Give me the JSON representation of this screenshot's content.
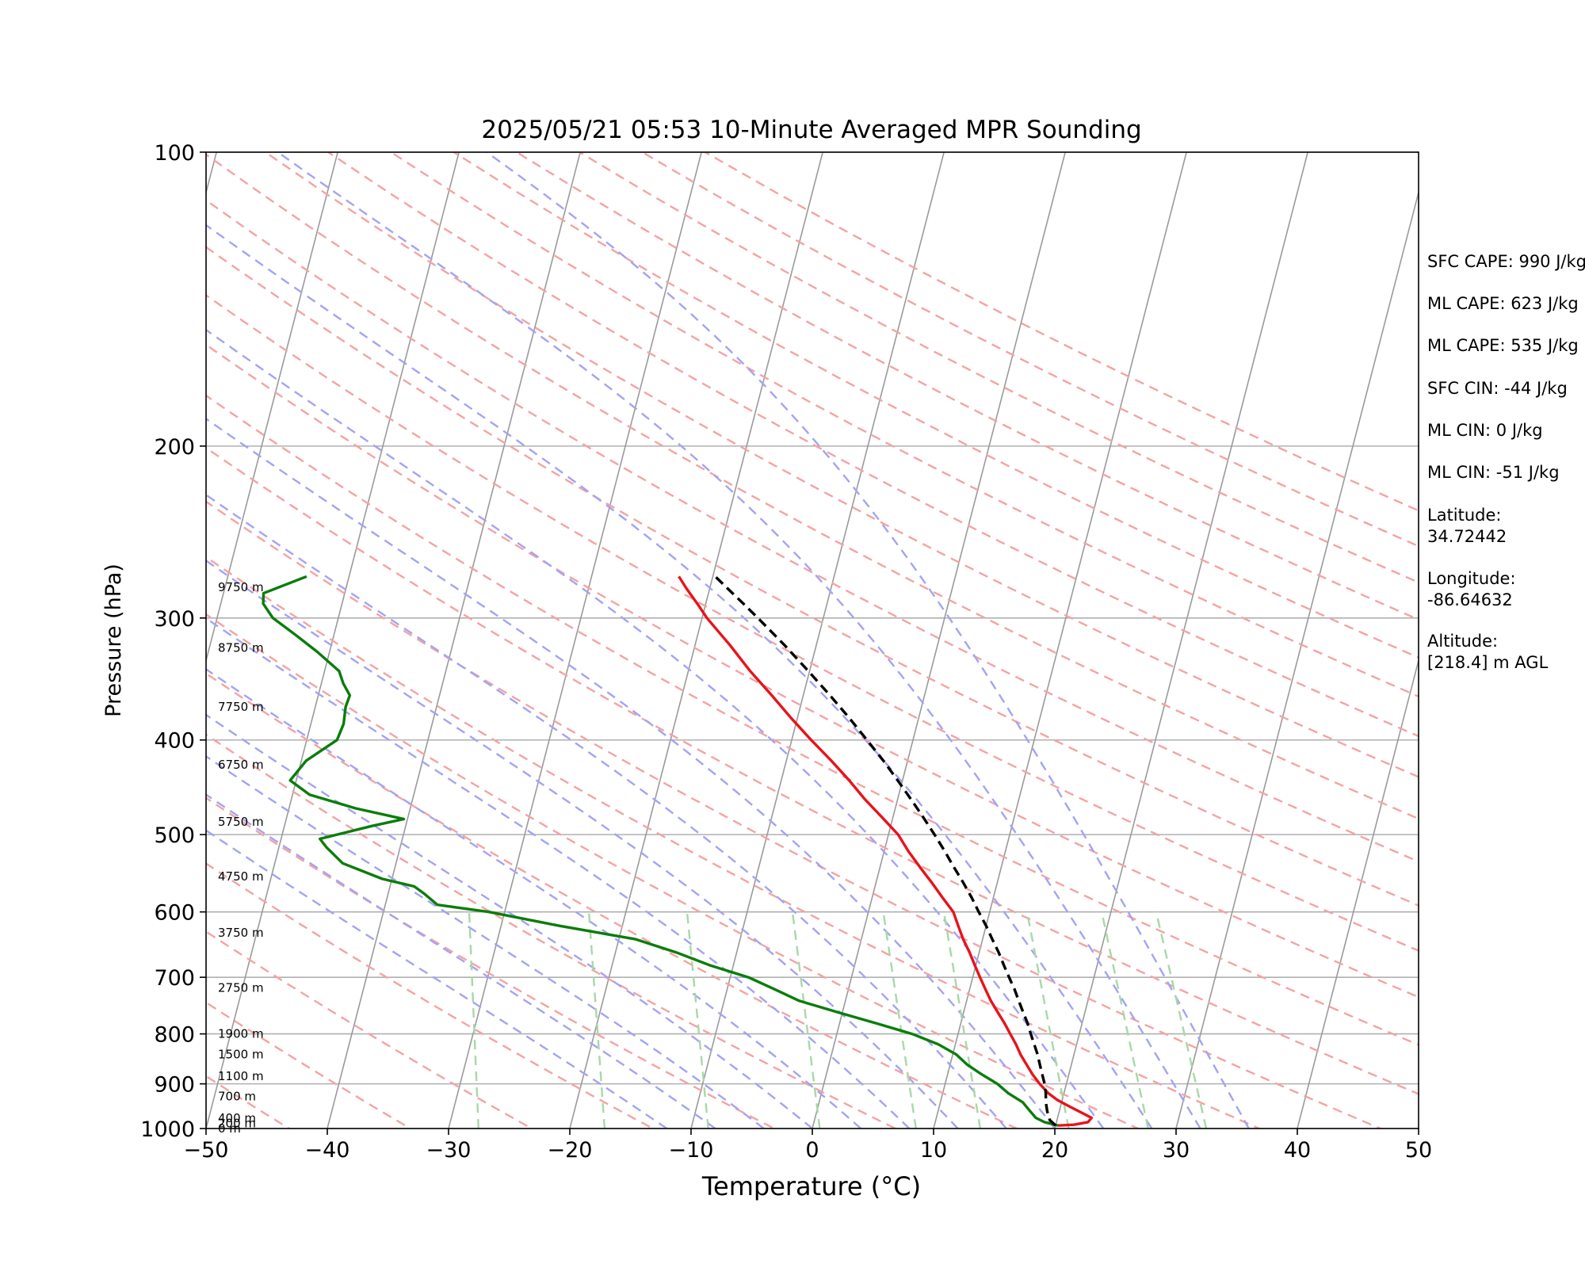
{
  "chart_data": {
    "type": "line",
    "title": "2025/05/21 05:53 10-Minute Averaged MPR Sounding",
    "xlabel": "Temperature (°C)",
    "ylabel": "Pressure (hPa)",
    "xlim": [
      -50,
      50
    ],
    "ylim": [
      1000,
      100
    ],
    "y_scale": "log",
    "x_ticks": [
      -50,
      -40,
      -30,
      -20,
      -10,
      0,
      10,
      20,
      30,
      40,
      50
    ],
    "x_tick_labels": [
      "−50",
      "−40",
      "−30",
      "−20",
      "−10",
      "0",
      "10",
      "20",
      "30",
      "40",
      "50"
    ],
    "y_ticks": [
      1000,
      900,
      800,
      700,
      600,
      500,
      400,
      300,
      200,
      100
    ],
    "y_tick_labels": [
      "1000",
      "900",
      "800",
      "700",
      "600",
      "500",
      "400",
      "300",
      "200",
      "100"
    ],
    "grid": true,
    "skew_t": true,
    "colors": {
      "temperature": "#e8131b",
      "dewpoint": "#0a7d0a",
      "parcel": "#000000",
      "dry_adiabats": "#f4a3a3",
      "moist_adiabats": "#a3a3f4",
      "mixing_ratio": "#a8d8a8",
      "isotherms": "#9a9a9a"
    },
    "series": [
      {
        "key": "temperature",
        "p": [
          993,
          991,
          985,
          975,
          965,
          950,
          935,
          920,
          900,
          880,
          860,
          840,
          820,
          800,
          780,
          760,
          740,
          720,
          700,
          680,
          660,
          640,
          620,
          600,
          580,
          560,
          540,
          520,
          500,
          480,
          460,
          440,
          420,
          400,
          380,
          360,
          340,
          320,
          300,
          290,
          280,
          272
        ],
        "t": [
          20.2,
          21.5,
          22.6,
          22.8,
          22.0,
          20.8,
          19.6,
          18.7,
          17.8,
          17.0,
          16.3,
          15.6,
          15.0,
          14.3,
          13.6,
          12.8,
          12.0,
          11.3,
          10.6,
          9.9,
          9.2,
          8.4,
          7.7,
          7.0,
          5.8,
          4.6,
          3.3,
          2.0,
          0.8,
          -0.9,
          -2.7,
          -4.4,
          -6.3,
          -8.4,
          -10.5,
          -12.6,
          -14.9,
          -17.1,
          -19.6,
          -20.7,
          -21.9,
          -22.8
        ]
      },
      {
        "key": "dewpoint",
        "p": [
          993,
          985,
          975,
          960,
          940,
          920,
          900,
          880,
          860,
          840,
          820,
          800,
          780,
          760,
          740,
          720,
          700,
          680,
          660,
          640,
          620,
          600,
          590,
          575,
          565,
          555,
          535,
          515,
          505,
          490,
          482,
          470,
          455,
          440,
          420,
          400,
          385,
          370,
          360,
          350,
          340,
          325,
          312,
          300,
          290,
          283,
          272
        ],
        "t": [
          20.2,
          19.0,
          18.2,
          17.6,
          16.8,
          15.4,
          14.3,
          12.8,
          11.4,
          10.3,
          8.6,
          6.2,
          3.0,
          -0.4,
          -3.8,
          -6.1,
          -8.5,
          -12.0,
          -15.0,
          -18.6,
          -25.2,
          -31.3,
          -35.7,
          -37.0,
          -38.0,
          -40.8,
          -44.4,
          -46.1,
          -46.8,
          -42.8,
          -40.3,
          -44.5,
          -48.6,
          -50.5,
          -49.6,
          -47.5,
          -47.3,
          -47.5,
          -47.4,
          -48.2,
          -48.8,
          -51.0,
          -53.2,
          -55.4,
          -56.5,
          -56.7,
          -53.5
        ]
      },
      {
        "key": "parcel",
        "p": [
          993,
          980,
          960,
          940,
          920,
          900,
          880,
          860,
          840,
          820,
          800,
          780,
          760,
          740,
          720,
          700,
          680,
          660,
          640,
          620,
          600,
          580,
          560,
          540,
          520,
          500,
          480,
          460,
          440,
          420,
          400,
          380,
          360,
          340,
          320,
          300,
          290,
          280,
          272
        ],
        "t": [
          20.0,
          19.4,
          19.0,
          18.7,
          18.5,
          18.2,
          17.8,
          17.4,
          17.0,
          16.5,
          16.0,
          15.5,
          14.9,
          14.3,
          13.7,
          13.0,
          12.3,
          11.6,
          10.8,
          10.0,
          9.1,
          8.2,
          7.2,
          6.1,
          5.0,
          3.8,
          2.5,
          1.1,
          -0.4,
          -2.0,
          -3.8,
          -5.7,
          -7.8,
          -10.1,
          -12.6,
          -15.4,
          -16.9,
          -18.5,
          -19.8
        ]
      }
    ],
    "height_labels": [
      {
        "p": 1000,
        "text": "0 m"
      },
      {
        "p": 988,
        "text": "200 m"
      },
      {
        "p": 976,
        "text": "400 m"
      },
      {
        "p": 927,
        "text": "700 m"
      },
      {
        "p": 884,
        "text": "1100 m"
      },
      {
        "p": 840,
        "text": "1500 m"
      },
      {
        "p": 800,
        "text": "1900 m"
      },
      {
        "p": 718,
        "text": "2750 m"
      },
      {
        "p": 630,
        "text": "3750 m"
      },
      {
        "p": 552,
        "text": "4750 m"
      },
      {
        "p": 485,
        "text": "5750 m"
      },
      {
        "p": 424,
        "text": "6750 m"
      },
      {
        "p": 370,
        "text": "7750 m"
      },
      {
        "p": 322,
        "text": "8750 m"
      },
      {
        "p": 279,
        "text": "9750 m"
      }
    ]
  },
  "side_text": {
    "sfc_cape": "SFC CAPE: 990 J/kg",
    "ml_cape_1": "ML CAPE: 623 J/kg",
    "ml_cape_2": "ML CAPE: 535 J/kg",
    "sfc_cin": "SFC CIN: -44 J/kg",
    "ml_cin_1": "ML CIN: 0 J/kg",
    "ml_cin_2": "ML CIN: -51 J/kg",
    "latitude": "Latitude:\n34.72442",
    "longitude": "Longitude:\n-86.64632",
    "altitude": "Altitude:\n[218.4] m AGL"
  }
}
